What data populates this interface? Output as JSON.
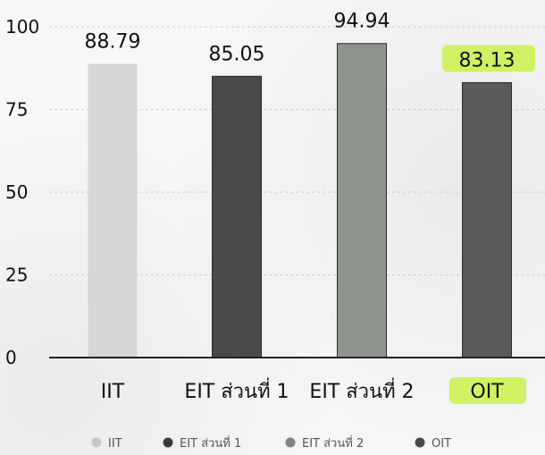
{
  "chart_data": {
    "type": "bar",
    "categories": [
      "IIT",
      "EIT ส่วนที่ 1",
      "EIT ส่วนที่ 2",
      "OIT"
    ],
    "values": [
      88.79,
      85.05,
      94.94,
      83.13
    ],
    "value_labels": [
      "88.79",
      "85.05",
      "94.94",
      "83.13"
    ],
    "legend": [
      "IIT",
      "EIT ส่วนที่ 1",
      "EIT ส่วนที่ 2",
      "OIT"
    ],
    "colors": [
      "#d6d6d6",
      "#4a4a4a",
      "#8e938e",
      "#5a5a5a"
    ],
    "legend_colors": [
      "#c8c8c8",
      "#3a3a3a",
      "#7e847e",
      "#4a4a4a"
    ],
    "highlight_color": "#c8f24a",
    "highlighted": [
      "OIT"
    ],
    "ylim": [
      0,
      100
    ],
    "yticks": [
      0,
      25,
      50,
      75,
      100
    ],
    "grid": true,
    "legend_position": "bottom",
    "title": "",
    "xlabel": "",
    "ylabel": ""
  }
}
